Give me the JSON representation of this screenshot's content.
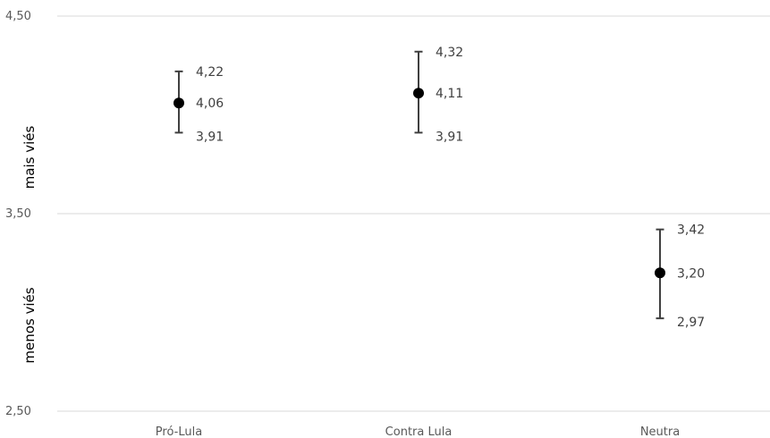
{
  "chart_data": {
    "type": "scatter",
    "categories": [
      "Pró-Lula",
      "Contra Lula",
      "Neutra"
    ],
    "series": [
      {
        "mean": [
          4.06,
          4.11,
          3.2
        ],
        "upper": [
          4.22,
          4.32,
          3.42
        ],
        "lower": [
          3.91,
          3.91,
          2.97
        ],
        "labels": {
          "mean": [
            "4,06",
            "4,11",
            "3,20"
          ],
          "upper": [
            "4,22",
            "4,32",
            "3,42"
          ],
          "lower": [
            "3,91",
            "3,91",
            "2,97"
          ]
        }
      }
    ],
    "ylim": [
      2.5,
      4.5
    ],
    "yticks": [
      2.5,
      3.5,
      4.5
    ],
    "ytick_labels": [
      "2,50",
      "3,50",
      "4,50"
    ],
    "side_labels": {
      "upper": "mais viés",
      "lower": "menos viés"
    },
    "grid": true,
    "colors": {
      "marker": "#000000",
      "errorbar": "#404040",
      "grid": "#d9d9d9"
    }
  }
}
